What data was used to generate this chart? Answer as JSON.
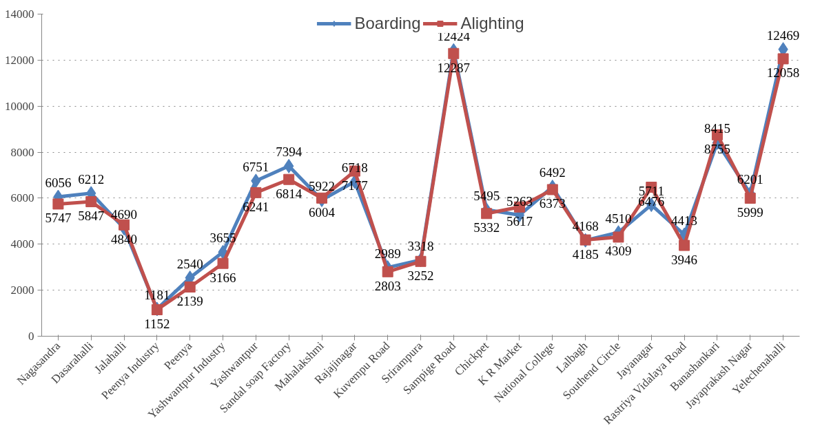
{
  "chart_data": {
    "type": "line",
    "categories": [
      "Nagasandra",
      "Dasarahalli",
      "Jalahalli",
      "Peenya Industry",
      "Peenya",
      "Yashwantpur Industry",
      "Yashwantpur",
      "Sandal soap Factory",
      "Mahalakshmi",
      "Rajajinagar",
      "Kuvempu Road",
      "Srirampura",
      "Sampige Road",
      "Chickpet",
      "K R Market",
      "National College",
      "Lalbagh",
      "Southend Circle",
      "Jayanagar",
      "Rastriya Vidalaya Road",
      "Banashankari",
      "Jayaprakash Nagar",
      "Yelechenahalli"
    ],
    "series": [
      {
        "name": "Boarding",
        "color": "#4f81bd",
        "marker": "diamond",
        "values": [
          6056,
          6212,
          4690,
          1181,
          2540,
          3655,
          6751,
          7394,
          5922,
          6718,
          2989,
          3318,
          12424,
          5495,
          5263,
          6492,
          4168,
          4510,
          5711,
          4413,
          8415,
          6201,
          12469
        ]
      },
      {
        "name": "Alighting",
        "color": "#c0504d",
        "marker": "square",
        "values": [
          5747,
          5847,
          4840,
          1152,
          2139,
          3166,
          6241,
          6814,
          6004,
          7177,
          2803,
          3252,
          12287,
          5332,
          5617,
          6373,
          4185,
          4309,
          6476,
          3946,
          8755,
          5999,
          12058
        ]
      }
    ],
    "ylim": [
      0,
      14000
    ],
    "yticks": [
      0,
      2000,
      4000,
      6000,
      8000,
      10000,
      12000,
      14000
    ],
    "grid": "y",
    "legend": "top",
    "data_labels": true,
    "line_style": "solid"
  }
}
